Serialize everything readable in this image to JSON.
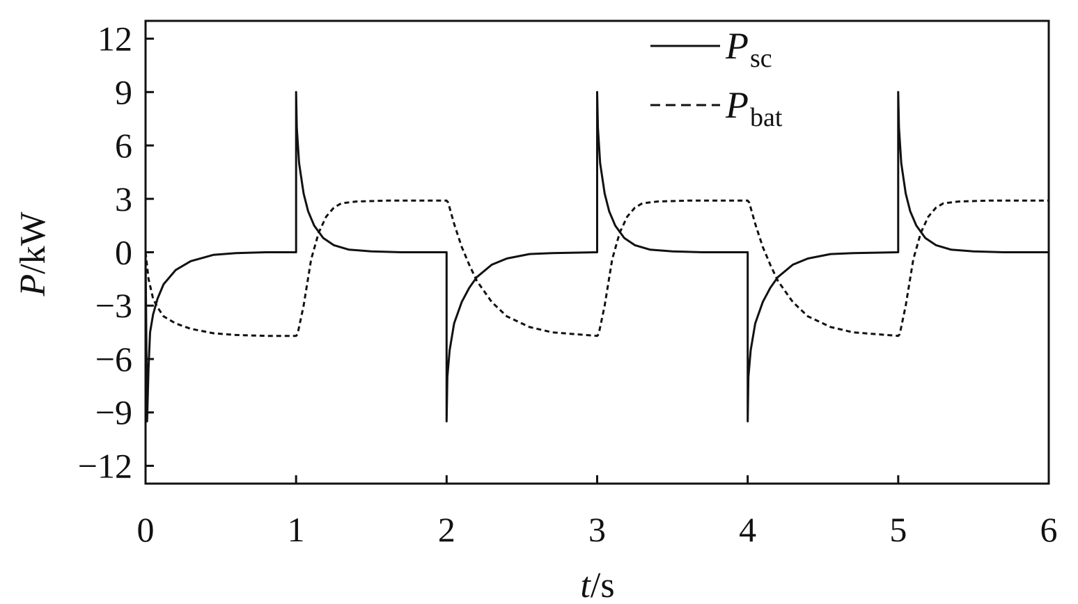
{
  "chart_data": {
    "type": "line",
    "xlabel": {
      "var": "t",
      "unit": "/s"
    },
    "ylabel": {
      "var": "P",
      "unit": "/kW"
    },
    "xlim": [
      0,
      6
    ],
    "ylim": [
      -13,
      13
    ],
    "xticks": [
      0,
      1,
      2,
      3,
      4,
      5,
      6
    ],
    "xtick_labels": [
      "0",
      "1",
      "2",
      "3",
      "4",
      "5",
      "6"
    ],
    "yticks": [
      12,
      9,
      6,
      3,
      0,
      -3,
      -6,
      -9,
      -12
    ],
    "ytick_labels": [
      "12",
      "9",
      "6",
      "3",
      "0",
      "−3",
      "−6",
      "−9",
      "−12"
    ],
    "grid": false,
    "legend_position": "top-right",
    "series": [
      {
        "name": "P_sc",
        "legend_main": "P",
        "legend_sub": "sc",
        "style": "solid",
        "color": "#111111",
        "x": [
          0,
          0.01,
          0.02,
          0.03,
          0.05,
          0.08,
          0.12,
          0.2,
          0.3,
          0.45,
          0.6,
          0.8,
          1.0,
          1.0,
          1.005,
          1.02,
          1.05,
          1.08,
          1.12,
          1.18,
          1.25,
          1.35,
          1.5,
          1.7,
          2.0,
          2.0,
          2.005,
          2.02,
          2.05,
          2.1,
          2.15,
          2.2,
          2.3,
          2.4,
          2.55,
          2.7,
          3.0,
          3.0,
          3.005,
          3.02,
          3.05,
          3.08,
          3.12,
          3.18,
          3.25,
          3.35,
          3.5,
          3.7,
          4.0,
          4.0,
          4.005,
          4.02,
          4.05,
          4.1,
          4.15,
          4.2,
          4.3,
          4.4,
          4.55,
          4.7,
          5.0,
          5.0,
          5.005,
          5.02,
          5.05,
          5.08,
          5.12,
          5.18,
          5.25,
          5.35,
          5.5,
          5.7,
          6.0
        ],
        "y": [
          0,
          -9.5,
          -6.5,
          -4.5,
          -3.5,
          -2.6,
          -1.8,
          -1.0,
          -0.5,
          -0.15,
          -0.05,
          0,
          0,
          9,
          7,
          5,
          3.3,
          2.3,
          1.5,
          0.8,
          0.4,
          0.15,
          0.05,
          0,
          0,
          -9.5,
          -7,
          -5.5,
          -4,
          -2.8,
          -2,
          -1.4,
          -0.7,
          -0.35,
          -0.1,
          -0.05,
          0,
          9,
          7,
          5,
          3.3,
          2.3,
          1.5,
          0.8,
          0.4,
          0.15,
          0.05,
          0,
          0,
          -9.5,
          -7,
          -5.5,
          -4,
          -2.8,
          -2,
          -1.4,
          -0.7,
          -0.35,
          -0.1,
          -0.05,
          0,
          9,
          7,
          5,
          3.3,
          2.3,
          1.5,
          0.8,
          0.4,
          0.15,
          0.05,
          0,
          0
        ]
      },
      {
        "name": "P_bat",
        "legend_main": "P",
        "legend_sub": "bat",
        "style": "dashed",
        "color": "#111111",
        "x": [
          0,
          0.02,
          0.05,
          0.08,
          0.12,
          0.2,
          0.3,
          0.45,
          0.6,
          0.8,
          1.0,
          1.01,
          1.05,
          1.1,
          1.15,
          1.2,
          1.25,
          1.3,
          1.4,
          1.6,
          2.0,
          2.01,
          2.05,
          2.1,
          2.15,
          2.2,
          2.3,
          2.4,
          2.55,
          2.7,
          3.0,
          3.01,
          3.05,
          3.1,
          3.15,
          3.2,
          3.25,
          3.3,
          3.4,
          3.6,
          4.0,
          4.01,
          4.05,
          4.1,
          4.15,
          4.2,
          4.3,
          4.4,
          4.55,
          4.7,
          5.0,
          5.01,
          5.05,
          5.1,
          5.15,
          5.2,
          5.25,
          5.3,
          5.4,
          5.6,
          6.0
        ],
        "y": [
          0,
          -1.5,
          -2.6,
          -3.1,
          -3.6,
          -4.0,
          -4.3,
          -4.55,
          -4.65,
          -4.7,
          -4.7,
          -4.6,
          -3.0,
          -0.4,
          1.1,
          2.0,
          2.5,
          2.75,
          2.85,
          2.9,
          2.9,
          2.8,
          1.6,
          0.3,
          -0.7,
          -1.6,
          -2.8,
          -3.6,
          -4.2,
          -4.5,
          -4.7,
          -4.6,
          -3.0,
          -0.4,
          1.1,
          2.0,
          2.5,
          2.75,
          2.85,
          2.9,
          2.9,
          2.8,
          1.6,
          0.3,
          -0.7,
          -1.6,
          -2.8,
          -3.6,
          -4.2,
          -4.5,
          -4.7,
          -4.6,
          -3.0,
          -0.4,
          1.1,
          2.0,
          2.5,
          2.75,
          2.85,
          2.9,
          2.9
        ]
      }
    ]
  }
}
